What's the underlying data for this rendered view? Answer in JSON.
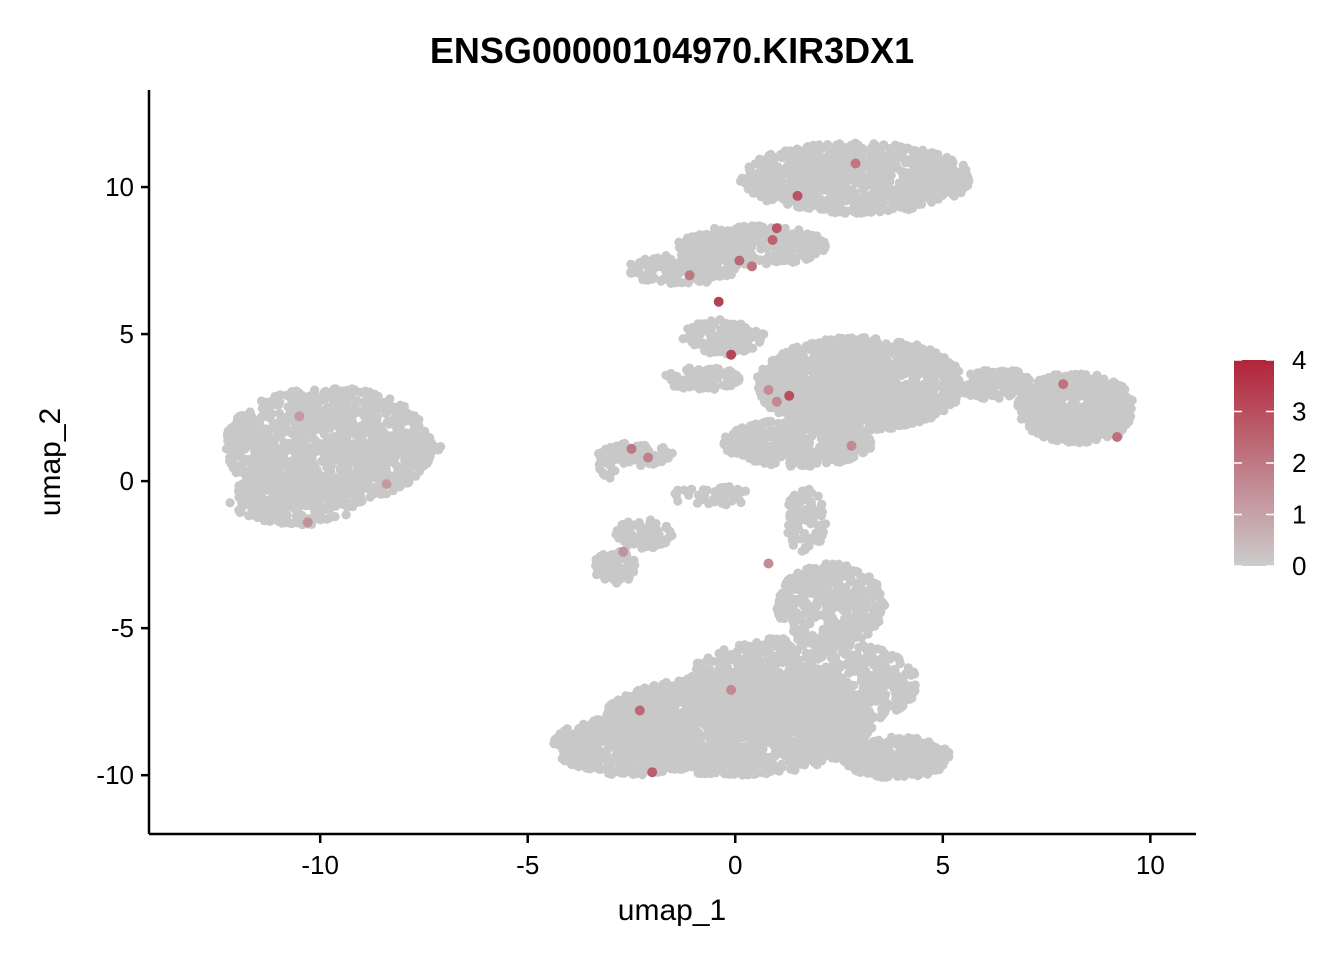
{
  "chart_data": {
    "type": "scatter",
    "title": "ENSG00000104970.KIR3DX1",
    "xlabel": "umap_1",
    "ylabel": "umap_2",
    "xlim": [
      -14.1,
      11.1
    ],
    "ylim": [
      -12.0,
      13.3
    ],
    "x_ticks": [
      -10,
      -5,
      0,
      5,
      10
    ],
    "y_ticks": [
      -10,
      -5,
      0,
      5,
      10
    ],
    "x_tick_labels": [
      "-10",
      "-5",
      "0",
      "5",
      "10"
    ],
    "y_tick_labels": [
      "-10",
      "-5",
      "0",
      "5",
      "10"
    ],
    "grid": false,
    "legend": {
      "placement": "right",
      "type": "colorbar",
      "range": [
        0,
        4
      ],
      "ticks": [
        0,
        1,
        2,
        3,
        4
      ],
      "tick_labels": [
        "0",
        "1",
        "2",
        "3",
        "4"
      ],
      "low_color": "#cccccc",
      "high_color": "#b2243a"
    },
    "base_color": "#c8c8c8",
    "clusters": [
      {
        "cx": -9.8,
        "cy": 1.2,
        "rx": 2.5,
        "ry": 2.0,
        "n": 1100
      },
      {
        "cx": -10.6,
        "cy": -0.6,
        "rx": 1.6,
        "ry": 0.9,
        "n": 300
      },
      {
        "cx": -7.8,
        "cy": 1.0,
        "rx": 0.8,
        "ry": 0.4,
        "n": 80
      },
      {
        "cx": 2.9,
        "cy": 10.3,
        "rx": 2.8,
        "ry": 1.2,
        "n": 900
      },
      {
        "cx": 0.4,
        "cy": 8.0,
        "rx": 1.8,
        "ry": 0.7,
        "n": 300
      },
      {
        "cx": -1.3,
        "cy": 7.2,
        "rx": 1.3,
        "ry": 0.5,
        "n": 150
      },
      {
        "cx": -0.3,
        "cy": 4.9,
        "rx": 1.0,
        "ry": 0.6,
        "n": 130
      },
      {
        "cx": -0.8,
        "cy": 3.5,
        "rx": 0.9,
        "ry": 0.4,
        "n": 100
      },
      {
        "cx": 3.0,
        "cy": 3.3,
        "rx": 2.5,
        "ry": 1.6,
        "n": 1300
      },
      {
        "cx": 1.5,
        "cy": 1.3,
        "rx": 1.8,
        "ry": 0.8,
        "n": 450
      },
      {
        "cx": 8.2,
        "cy": 2.5,
        "rx": 1.4,
        "ry": 1.2,
        "n": 500
      },
      {
        "cx": 6.2,
        "cy": 3.3,
        "rx": 1.2,
        "ry": 0.5,
        "n": 120
      },
      {
        "cx": 9.0,
        "cy": 1.9,
        "rx": 0.5,
        "ry": 0.4,
        "n": 60
      },
      {
        "cx": -2.4,
        "cy": 0.9,
        "rx": 0.9,
        "ry": 0.4,
        "n": 70
      },
      {
        "cx": -3.0,
        "cy": 0.6,
        "rx": 0.3,
        "ry": 0.5,
        "n": 25
      },
      {
        "cx": -2.9,
        "cy": -2.9,
        "rx": 0.5,
        "ry": 0.6,
        "n": 90
      },
      {
        "cx": -2.2,
        "cy": -1.8,
        "rx": 0.7,
        "ry": 0.5,
        "n": 70
      },
      {
        "cx": -0.6,
        "cy": -0.5,
        "rx": 1.0,
        "ry": 0.35,
        "n": 45
      },
      {
        "cx": 1.7,
        "cy": -1.3,
        "rx": 0.5,
        "ry": 1.1,
        "n": 90
      },
      {
        "cx": 2.3,
        "cy": -4.2,
        "rx": 1.3,
        "ry": 1.4,
        "n": 380
      },
      {
        "cx": 0.0,
        "cy": -8.3,
        "rx": 3.3,
        "ry": 1.7,
        "n": 1800
      },
      {
        "cx": 1.6,
        "cy": -6.9,
        "rx": 2.8,
        "ry": 1.6,
        "n": 900
      },
      {
        "cx": -2.6,
        "cy": -9.0,
        "rx": 1.8,
        "ry": 1.0,
        "n": 500
      },
      {
        "cx": 3.9,
        "cy": -9.4,
        "rx": 1.3,
        "ry": 0.7,
        "n": 300
      }
    ],
    "expressing_cells": [
      {
        "x": 1.0,
        "y": 8.6,
        "v": 2.8
      },
      {
        "x": 0.9,
        "y": 8.2,
        "v": 2.5
      },
      {
        "x": 1.5,
        "y": 9.7,
        "v": 2.9
      },
      {
        "x": 2.9,
        "y": 10.8,
        "v": 2.0
      },
      {
        "x": 0.1,
        "y": 7.5,
        "v": 2.4
      },
      {
        "x": 0.4,
        "y": 7.3,
        "v": 2.1
      },
      {
        "x": -1.1,
        "y": 7.0,
        "v": 2.0
      },
      {
        "x": -0.4,
        "y": 6.1,
        "v": 3.3
      },
      {
        "x": -0.1,
        "y": 4.3,
        "v": 3.2
      },
      {
        "x": 1.3,
        "y": 2.9,
        "v": 3.0
      },
      {
        "x": 1.0,
        "y": 2.7,
        "v": 1.6
      },
      {
        "x": 0.8,
        "y": 3.1,
        "v": 1.5
      },
      {
        "x": 2.8,
        "y": 1.2,
        "v": 1.6
      },
      {
        "x": 7.9,
        "y": 3.3,
        "v": 2.1
      },
      {
        "x": 9.2,
        "y": 1.5,
        "v": 2.2
      },
      {
        "x": -2.5,
        "y": 1.1,
        "v": 2.0
      },
      {
        "x": -2.1,
        "y": 0.8,
        "v": 1.8
      },
      {
        "x": -2.7,
        "y": -2.4,
        "v": 1.4
      },
      {
        "x": 0.8,
        "y": -2.8,
        "v": 1.5
      },
      {
        "x": -0.1,
        "y": -7.1,
        "v": 1.6
      },
      {
        "x": -2.3,
        "y": -7.8,
        "v": 2.4
      },
      {
        "x": -2.0,
        "y": -9.9,
        "v": 2.6
      },
      {
        "x": -10.5,
        "y": 2.2,
        "v": 1.2
      },
      {
        "x": -8.4,
        "y": -0.1,
        "v": 1.2
      },
      {
        "x": -10.3,
        "y": -1.4,
        "v": 1.4
      }
    ]
  }
}
